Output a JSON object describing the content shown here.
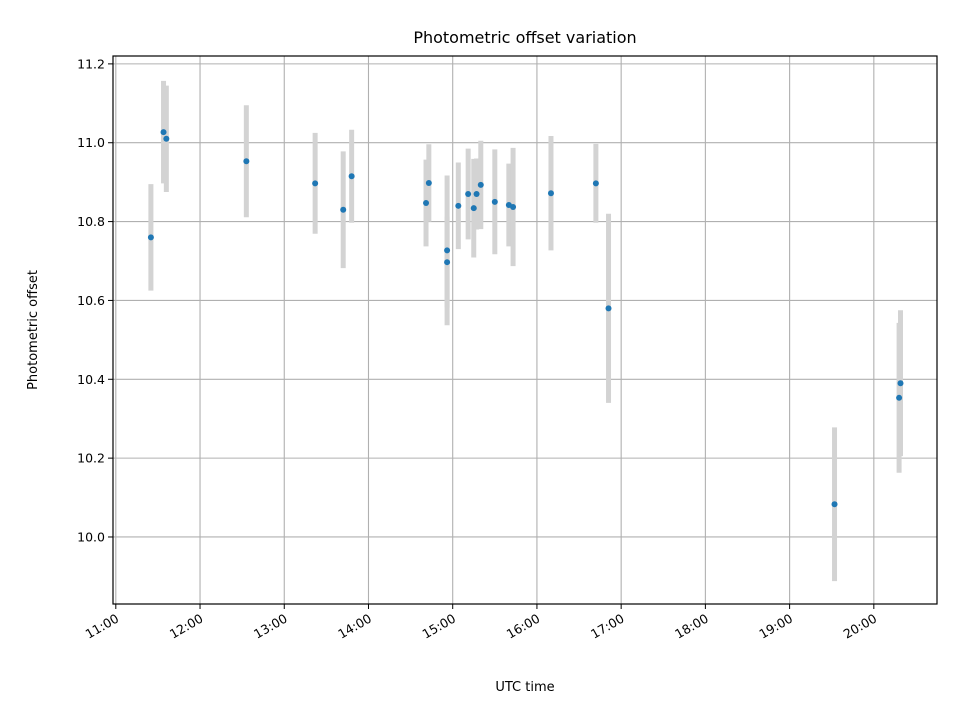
{
  "chart_data": {
    "type": "scatter",
    "title": "Photometric offset variation",
    "xlabel": "UTC time",
    "ylabel": "Photometric offset",
    "xlim": [
      "10:58",
      "20:45"
    ],
    "ylim": [
      9.83,
      11.22
    ],
    "grid": true,
    "legend": "none",
    "x_ticks": [
      "11:00",
      "12:00",
      "13:00",
      "14:00",
      "15:00",
      "16:00",
      "17:00",
      "18:00",
      "19:00",
      "20:00"
    ],
    "y_ticks": [
      "10.0",
      "10.2",
      "10.4",
      "10.6",
      "10.8",
      "11.0",
      "11.2"
    ],
    "colors": {
      "marker": "#1f77b4",
      "errorbar": "#d3d3d3",
      "grid": "#b0b0b0"
    },
    "series": [
      {
        "points": [
          {
            "x": "11:25",
            "y": 10.76,
            "err": 0.135
          },
          {
            "x": "11:34",
            "y": 11.027,
            "err": 0.13
          },
          {
            "x": "11:36",
            "y": 11.01,
            "err": 0.135
          },
          {
            "x": "12:33",
            "y": 10.953,
            "err": 0.142
          },
          {
            "x": "13:22",
            "y": 10.897,
            "err": 0.128
          },
          {
            "x": "13:42",
            "y": 10.83,
            "err": 0.148
          },
          {
            "x": "13:48",
            "y": 10.915,
            "err": 0.118
          },
          {
            "x": "14:41",
            "y": 10.847,
            "err": 0.11
          },
          {
            "x": "14:43",
            "y": 10.898,
            "err": 0.098
          },
          {
            "x": "14:56",
            "y": 10.727,
            "err": 0.19
          },
          {
            "x": "14:56",
            "y": 10.697,
            "err": 0.115
          },
          {
            "x": "15:04",
            "y": 10.84,
            "err": 0.11
          },
          {
            "x": "15:11",
            "y": 10.87,
            "err": 0.115
          },
          {
            "x": "15:15",
            "y": 10.834,
            "err": 0.125
          },
          {
            "x": "15:17",
            "y": 10.87,
            "err": 0.09
          },
          {
            "x": "15:20",
            "y": 10.893,
            "err": 0.112
          },
          {
            "x": "15:30",
            "y": 10.85,
            "err": 0.133
          },
          {
            "x": "15:40",
            "y": 10.842,
            "err": 0.105
          },
          {
            "x": "15:43",
            "y": 10.837,
            "err": 0.15
          },
          {
            "x": "16:10",
            "y": 10.872,
            "err": 0.145
          },
          {
            "x": "16:42",
            "y": 10.897,
            "err": 0.1
          },
          {
            "x": "16:51",
            "y": 10.58,
            "err": 0.24
          },
          {
            "x": "19:32",
            "y": 10.083,
            "err": 0.195
          },
          {
            "x": "20:18",
            "y": 10.353,
            "err": 0.19
          },
          {
            "x": "20:19",
            "y": 10.39,
            "err": 0.185
          }
        ]
      }
    ]
  }
}
